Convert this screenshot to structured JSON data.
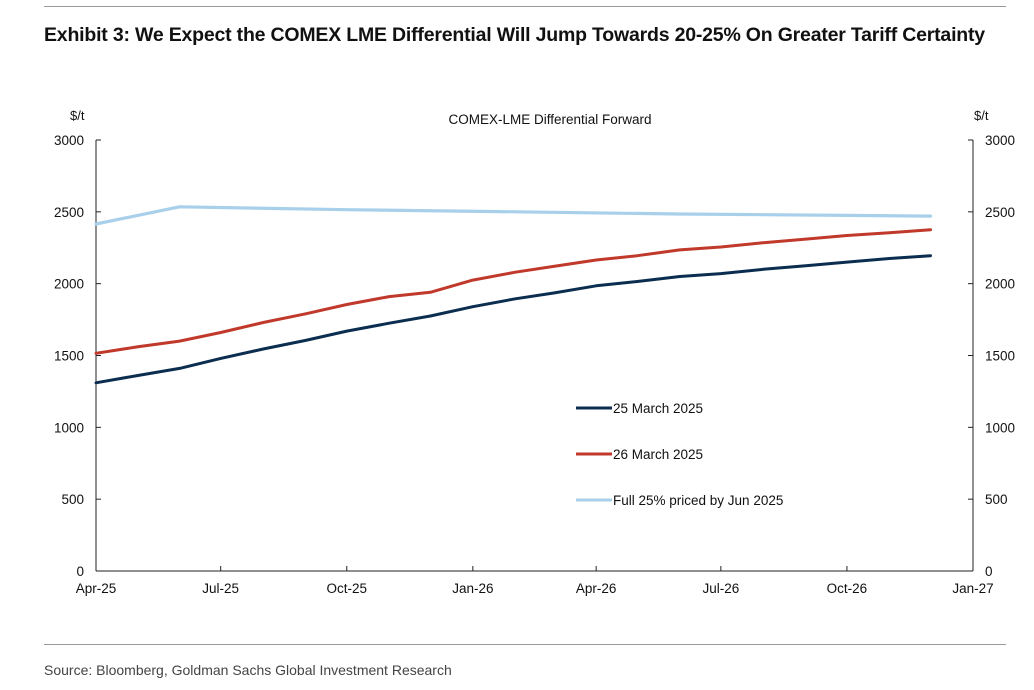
{
  "exhibit": {
    "title": "Exhibit 3: We Expect the COMEX LME Differential Will Jump Towards 20-25% On Greater Tariff Certainty",
    "source": "Source: Bloomberg, Goldman Sachs Global Investment Research"
  },
  "chart_data": {
    "type": "line",
    "title": "COMEX-LME Differential Forward",
    "ylabel_left": "$/t",
    "ylabel_right": "$/t",
    "ylim": [
      0,
      3000
    ],
    "yticks": [
      0,
      500,
      1000,
      1500,
      2000,
      2500,
      3000
    ],
    "xlim": [
      "2025-04-01",
      "2027-01-01"
    ],
    "xticks": [
      {
        "date": "2025-04-01",
        "label": "Apr-25"
      },
      {
        "date": "2025-07-01",
        "label": "Jul-25"
      },
      {
        "date": "2025-10-01",
        "label": "Oct-25"
      },
      {
        "date": "2026-01-01",
        "label": "Jan-26"
      },
      {
        "date": "2026-04-01",
        "label": "Apr-26"
      },
      {
        "date": "2026-07-01",
        "label": "Jul-26"
      },
      {
        "date": "2026-10-01",
        "label": "Oct-26"
      },
      {
        "date": "2027-01-01",
        "label": "Jan-27"
      }
    ],
    "grid": false,
    "legend_position": "center-right",
    "series": [
      {
        "name": "25 March 2025",
        "color": "#0b2d4f",
        "points": [
          [
            "2025-04-01",
            1310
          ],
          [
            "2025-05-01",
            1360
          ],
          [
            "2025-06-01",
            1410
          ],
          [
            "2025-07-01",
            1480
          ],
          [
            "2025-08-01",
            1545
          ],
          [
            "2025-09-01",
            1605
          ],
          [
            "2025-10-01",
            1670
          ],
          [
            "2025-11-01",
            1725
          ],
          [
            "2025-12-01",
            1775
          ],
          [
            "2026-01-01",
            1840
          ],
          [
            "2026-02-01",
            1895
          ],
          [
            "2026-03-01",
            1935
          ],
          [
            "2026-04-01",
            1985
          ],
          [
            "2026-05-01",
            2015
          ],
          [
            "2026-06-01",
            2050
          ],
          [
            "2026-07-01",
            2070
          ],
          [
            "2026-08-01",
            2100
          ],
          [
            "2026-09-01",
            2125
          ],
          [
            "2026-10-01",
            2150
          ],
          [
            "2026-11-01",
            2175
          ],
          [
            "2026-12-01",
            2195
          ]
        ]
      },
      {
        "name": "26 March 2025",
        "color": "#c0392b",
        "points": [
          [
            "2025-04-01",
            1515
          ],
          [
            "2025-05-01",
            1560
          ],
          [
            "2025-06-01",
            1600
          ],
          [
            "2025-07-01",
            1660
          ],
          [
            "2025-08-01",
            1730
          ],
          [
            "2025-09-01",
            1790
          ],
          [
            "2025-10-01",
            1855
          ],
          [
            "2025-11-01",
            1910
          ],
          [
            "2025-12-01",
            1940
          ],
          [
            "2026-01-01",
            2025
          ],
          [
            "2026-02-01",
            2080
          ],
          [
            "2026-03-01",
            2120
          ],
          [
            "2026-04-01",
            2165
          ],
          [
            "2026-05-01",
            2195
          ],
          [
            "2026-06-01",
            2235
          ],
          [
            "2026-07-01",
            2255
          ],
          [
            "2026-08-01",
            2285
          ],
          [
            "2026-09-01",
            2310
          ],
          [
            "2026-10-01",
            2335
          ],
          [
            "2026-11-01",
            2355
          ],
          [
            "2026-12-01",
            2375
          ]
        ]
      },
      {
        "name": "Full 25% priced by Jun 2025",
        "color": "#a9d0ea",
        "points": [
          [
            "2025-04-01",
            2415
          ],
          [
            "2025-06-01",
            2535
          ],
          [
            "2025-10-01",
            2515
          ],
          [
            "2026-02-01",
            2500
          ],
          [
            "2026-06-01",
            2485
          ],
          [
            "2026-10-01",
            2475
          ],
          [
            "2026-12-01",
            2470
          ]
        ]
      }
    ]
  }
}
